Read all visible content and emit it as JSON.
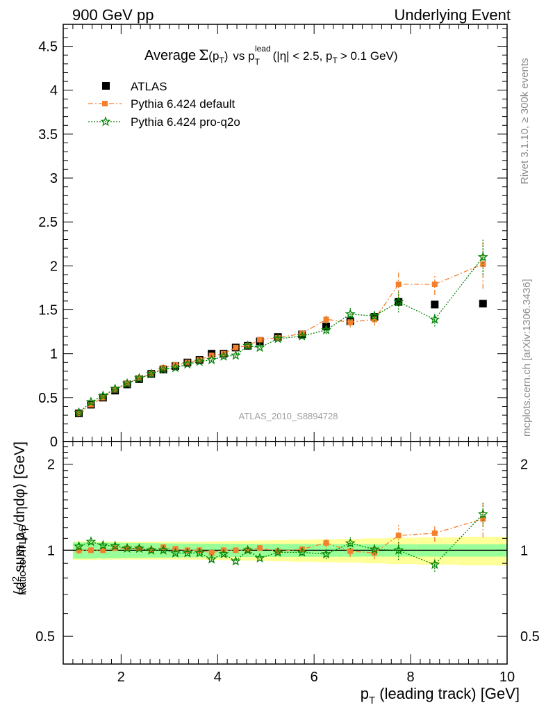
{
  "header": {
    "left": "900 GeV pp",
    "right": "Underlying Event"
  },
  "side_text": {
    "rivet": "Rivet 3.1.10, ≥ 300k events",
    "mcplots": "mcplots.cern.ch [arXiv:1306.3436]"
  },
  "watermark": "ATLAS_2010_S8894728",
  "title": {
    "average": "Average",
    "sigma": "Σ",
    "sigma_arg": "(p",
    "sigma_arg_sub": "T",
    "sigma_arg_close": ")",
    "vs": "vs p",
    "vs_sup": "lead",
    "vs_sub": "T",
    "cuts": "(|η| < 2.5, p",
    "cuts_sub": "T",
    "cuts_end": "> 0.1 GeV)"
  },
  "ylabel_main": {
    "p1": "⟨d",
    "sup": "2",
    "p2": " sum p",
    "sub": "T",
    "p3": "/dηdφ⟩ [GeV]"
  },
  "ylabel_ratio": "Ratio to ATLAS",
  "xlabel": {
    "p1": "p",
    "sub": "T",
    "p2": " (leading track) [GeV]"
  },
  "colors": {
    "data": "#000000",
    "default": "#f47f2c",
    "proq2o": "#008200",
    "band_inner": "#99ff99",
    "band_outer": "#ffff99"
  },
  "chart_data": {
    "type": "scatter",
    "x": [
      1.125,
      1.375,
      1.625,
      1.875,
      2.125,
      2.375,
      2.625,
      2.875,
      3.125,
      3.375,
      3.625,
      3.875,
      4.125,
      4.375,
      4.625,
      4.875,
      5.25,
      5.75,
      6.25,
      6.75,
      7.25,
      7.75,
      8.5,
      9.5
    ],
    "xlim": [
      0.8,
      10.0
    ],
    "xticks": [
      2,
      4,
      6,
      8,
      10
    ],
    "main_ylim": [
      0,
      4.75
    ],
    "main_yticks": [
      0,
      0.5,
      1,
      1.5,
      2,
      2.5,
      3,
      3.5,
      4,
      4.5
    ],
    "main_ytick_labels": [
      "0",
      "0.5",
      "1",
      "1.5",
      "2",
      "2.5",
      "3",
      "3.5",
      "4",
      "4.5"
    ],
    "ratio_ylim": [
      0.4,
      2.4
    ],
    "ratio_log": true,
    "ratio_yticks": [
      0.5,
      1,
      2
    ],
    "ratio_ytick_labels": [
      "0.5",
      "1",
      "2"
    ],
    "series": [
      {
        "name": "ATLAS",
        "values": [
          0.32,
          0.42,
          0.5,
          0.58,
          0.65,
          0.71,
          0.77,
          0.82,
          0.86,
          0.9,
          0.93,
          1.0,
          1.0,
          1.07,
          1.09,
          1.14,
          1.19,
          1.22,
          1.31,
          1.37,
          1.42,
          1.59,
          1.56,
          1.57
        ],
        "band_inner": [
          0.065,
          0.065,
          0.063,
          0.062,
          0.06,
          0.06,
          0.058,
          0.057,
          0.056,
          0.055,
          0.055,
          0.054,
          0.054,
          0.053,
          0.053,
          0.052,
          0.052,
          0.052,
          0.051,
          0.051,
          0.05,
          0.05,
          0.05,
          0.05
        ],
        "band_outer": [
          0.075,
          0.075,
          0.073,
          0.072,
          0.072,
          0.072,
          0.072,
          0.072,
          0.072,
          0.072,
          0.072,
          0.074,
          0.076,
          0.078,
          0.08,
          0.082,
          0.085,
          0.088,
          0.092,
          0.095,
          0.1,
          0.105,
          0.11,
          0.115
        ]
      },
      {
        "name": "Pythia 6.424 default",
        "values": [
          0.32,
          0.42,
          0.5,
          0.59,
          0.66,
          0.72,
          0.77,
          0.84,
          0.87,
          0.9,
          0.93,
          0.98,
          1.0,
          1.07,
          1.09,
          1.16,
          1.18,
          1.23,
          1.39,
          1.36,
          1.39,
          1.79,
          1.79,
          2.02
        ],
        "errors": [
          0.01,
          0.01,
          0.01,
          0.01,
          0.01,
          0.01,
          0.012,
          0.012,
          0.013,
          0.014,
          0.015,
          0.016,
          0.017,
          0.018,
          0.02,
          0.022,
          0.025,
          0.03,
          0.05,
          0.06,
          0.07,
          0.16,
          0.12,
          0.28
        ]
      },
      {
        "name": "Pythia 6.424 pro-q2o",
        "values": [
          0.33,
          0.45,
          0.52,
          0.6,
          0.66,
          0.72,
          0.77,
          0.82,
          0.84,
          0.88,
          0.91,
          0.93,
          0.97,
          0.98,
          1.09,
          1.07,
          1.17,
          1.2,
          1.27,
          1.45,
          1.43,
          1.59,
          1.39,
          2.1
        ],
        "errors": [
          0.01,
          0.01,
          0.01,
          0.01,
          0.01,
          0.01,
          0.012,
          0.012,
          0.013,
          0.014,
          0.015,
          0.016,
          0.017,
          0.018,
          0.02,
          0.022,
          0.025,
          0.03,
          0.05,
          0.07,
          0.06,
          0.12,
          0.08,
          0.2
        ]
      }
    ]
  }
}
